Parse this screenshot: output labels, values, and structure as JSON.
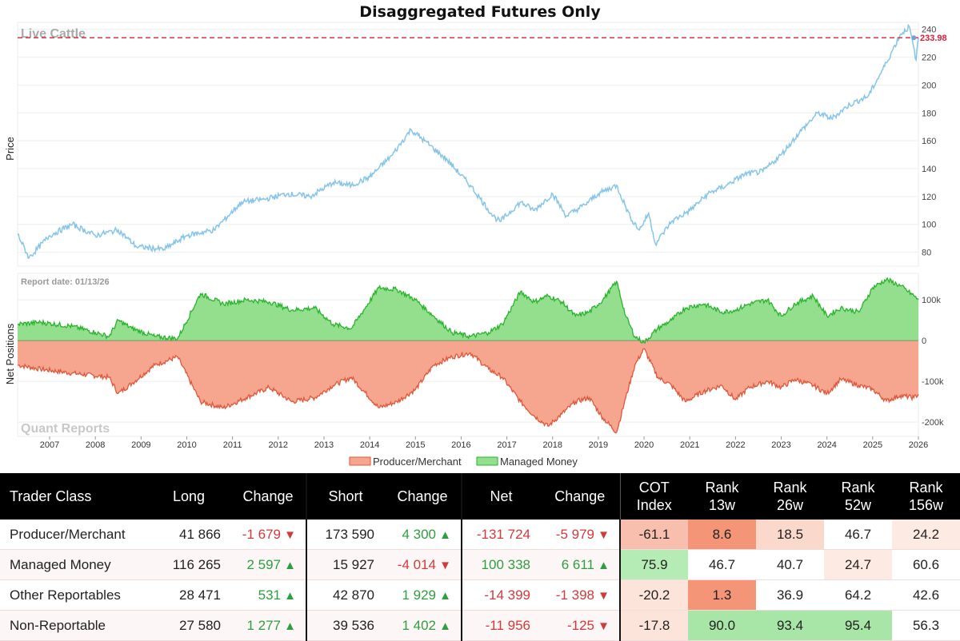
{
  "title": "Disaggregated Futures Only",
  "colors": {
    "price_line": "#86c5ea",
    "producer": "#f6a58f",
    "producer_line": "#e0573a",
    "managed": "#93df8e",
    "managed_line": "#27b52a",
    "ref_line": "#d8203a"
  },
  "chart_data": [
    {
      "type": "line",
      "name": "price",
      "watermark": "Live Cattle",
      "ylabel": "Price",
      "ylim": [
        70,
        245
      ],
      "yticks": [
        "80",
        "100",
        "120",
        "140",
        "160",
        "180",
        "200",
        "220",
        "240"
      ],
      "current_price": "233.98",
      "x_start": 2006.3,
      "x_end": 2026.0,
      "series": [
        {
          "name": "Live Cattle",
          "anchors": [
            [
              2006.3,
              93
            ],
            [
              2006.55,
              76
            ],
            [
              2007.0,
              92
            ],
            [
              2007.5,
              100
            ],
            [
              2008.0,
              92
            ],
            [
              2008.5,
              96
            ],
            [
              2008.9,
              84
            ],
            [
              2009.5,
              82
            ],
            [
              2010.0,
              92
            ],
            [
              2010.6,
              96
            ],
            [
              2011.2,
              116
            ],
            [
              2011.7,
              118
            ],
            [
              2012.2,
              122
            ],
            [
              2012.7,
              120
            ],
            [
              2013.2,
              130
            ],
            [
              2013.6,
              128
            ],
            [
              2014.0,
              134
            ],
            [
              2014.5,
              150
            ],
            [
              2014.9,
              168
            ],
            [
              2015.2,
              160
            ],
            [
              2015.7,
              146
            ],
            [
              2016.2,
              128
            ],
            [
              2016.7,
              106
            ],
            [
              2016.85,
              102
            ],
            [
              2017.3,
              116
            ],
            [
              2017.6,
              110
            ],
            [
              2018.0,
              122
            ],
            [
              2018.3,
              106
            ],
            [
              2018.7,
              114
            ],
            [
              2019.0,
              122
            ],
            [
              2019.4,
              128
            ],
            [
              2019.7,
              105
            ],
            [
              2019.9,
              96
            ],
            [
              2020.1,
              108
            ],
            [
              2020.25,
              86
            ],
            [
              2020.6,
              102
            ],
            [
              2021.0,
              110
            ],
            [
              2021.4,
              122
            ],
            [
              2021.8,
              128
            ],
            [
              2022.2,
              136
            ],
            [
              2022.6,
              138
            ],
            [
              2023.0,
              150
            ],
            [
              2023.4,
              166
            ],
            [
              2023.8,
              180
            ],
            [
              2024.1,
              176
            ],
            [
              2024.5,
              186
            ],
            [
              2024.9,
              192
            ],
            [
              2025.3,
              216
            ],
            [
              2025.6,
              236
            ],
            [
              2025.8,
              242
            ],
            [
              2025.95,
              218
            ],
            [
              2026.0,
              233.98
            ]
          ]
        }
      ]
    },
    {
      "type": "area",
      "name": "net-positions",
      "report_date_label": "Report date: 01/13/26",
      "watermark": "Quant Reports",
      "ylabel": "Net Positions",
      "ylim": [
        -235000,
        165000
      ],
      "yticks": [
        "100k",
        "0",
        "-100k",
        "-200k"
      ],
      "xticks": [
        "2007",
        "2008",
        "2009",
        "2010",
        "2011",
        "2012",
        "2013",
        "2014",
        "2015",
        "2016",
        "2017",
        "2018",
        "2019",
        "2020",
        "2021",
        "2022",
        "2023",
        "2024",
        "2025",
        "2026"
      ],
      "series": [
        {
          "name": "Producer/Merchant",
          "anchors": [
            [
              2006.3,
              -60000
            ],
            [
              2006.8,
              -70000
            ],
            [
              2007.5,
              -80000
            ],
            [
              2008.3,
              -90000
            ],
            [
              2008.5,
              -130000
            ],
            [
              2008.8,
              -105000
            ],
            [
              2009.3,
              -60000
            ],
            [
              2009.8,
              -40000
            ],
            [
              2010.3,
              -150000
            ],
            [
              2010.8,
              -165000
            ],
            [
              2011.3,
              -140000
            ],
            [
              2011.8,
              -115000
            ],
            [
              2012.3,
              -150000
            ],
            [
              2012.8,
              -140000
            ],
            [
              2013.2,
              -110000
            ],
            [
              2013.6,
              -90000
            ],
            [
              2014.2,
              -165000
            ],
            [
              2014.6,
              -150000
            ],
            [
              2015.0,
              -120000
            ],
            [
              2015.4,
              -60000
            ],
            [
              2015.8,
              -40000
            ],
            [
              2016.2,
              -30000
            ],
            [
              2016.6,
              -70000
            ],
            [
              2016.9,
              -90000
            ],
            [
              2017.3,
              -150000
            ],
            [
              2017.6,
              -185000
            ],
            [
              2017.9,
              -210000
            ],
            [
              2018.2,
              -180000
            ],
            [
              2018.5,
              -150000
            ],
            [
              2018.8,
              -140000
            ],
            [
              2019.1,
              -190000
            ],
            [
              2019.4,
              -225000
            ],
            [
              2019.6,
              -140000
            ],
            [
              2019.8,
              -60000
            ],
            [
              2020.0,
              -20000
            ],
            [
              2020.3,
              -90000
            ],
            [
              2020.6,
              -110000
            ],
            [
              2020.9,
              -150000
            ],
            [
              2021.3,
              -125000
            ],
            [
              2021.7,
              -110000
            ],
            [
              2022.0,
              -145000
            ],
            [
              2022.3,
              -115000
            ],
            [
              2022.7,
              -100000
            ],
            [
              2023.0,
              -115000
            ],
            [
              2023.3,
              -95000
            ],
            [
              2023.7,
              -110000
            ],
            [
              2024.0,
              -130000
            ],
            [
              2024.3,
              -95000
            ],
            [
              2024.7,
              -110000
            ],
            [
              2025.0,
              -120000
            ],
            [
              2025.3,
              -148000
            ],
            [
              2025.6,
              -135000
            ],
            [
              2025.9,
              -140000
            ],
            [
              2026.0,
              -131724
            ]
          ]
        },
        {
          "name": "Managed Money",
          "anchors": [
            [
              2006.3,
              40000
            ],
            [
              2006.8,
              45000
            ],
            [
              2007.5,
              35000
            ],
            [
              2008.0,
              20000
            ],
            [
              2008.3,
              10000
            ],
            [
              2008.5,
              50000
            ],
            [
              2008.8,
              30000
            ],
            [
              2009.3,
              10000
            ],
            [
              2009.8,
              5000
            ],
            [
              2010.3,
              115000
            ],
            [
              2010.8,
              90000
            ],
            [
              2011.3,
              100000
            ],
            [
              2011.8,
              95000
            ],
            [
              2012.3,
              75000
            ],
            [
              2012.8,
              80000
            ],
            [
              2013.2,
              40000
            ],
            [
              2013.6,
              30000
            ],
            [
              2014.2,
              130000
            ],
            [
              2014.6,
              125000
            ],
            [
              2015.0,
              100000
            ],
            [
              2015.4,
              60000
            ],
            [
              2015.8,
              20000
            ],
            [
              2016.2,
              10000
            ],
            [
              2016.6,
              20000
            ],
            [
              2016.9,
              40000
            ],
            [
              2017.3,
              120000
            ],
            [
              2017.6,
              95000
            ],
            [
              2017.9,
              110000
            ],
            [
              2018.2,
              95000
            ],
            [
              2018.5,
              60000
            ],
            [
              2018.8,
              70000
            ],
            [
              2019.1,
              100000
            ],
            [
              2019.4,
              145000
            ],
            [
              2019.6,
              60000
            ],
            [
              2019.8,
              10000
            ],
            [
              2020.0,
              -5000
            ],
            [
              2020.3,
              30000
            ],
            [
              2020.6,
              50000
            ],
            [
              2020.9,
              80000
            ],
            [
              2021.3,
              90000
            ],
            [
              2021.7,
              70000
            ],
            [
              2022.0,
              75000
            ],
            [
              2022.3,
              90000
            ],
            [
              2022.7,
              100000
            ],
            [
              2023.0,
              60000
            ],
            [
              2023.3,
              90000
            ],
            [
              2023.7,
              110000
            ],
            [
              2024.0,
              60000
            ],
            [
              2024.3,
              80000
            ],
            [
              2024.7,
              70000
            ],
            [
              2025.0,
              130000
            ],
            [
              2025.3,
              150000
            ],
            [
              2025.6,
              135000
            ],
            [
              2025.9,
              110000
            ],
            [
              2026.0,
              100338
            ]
          ]
        }
      ]
    }
  ],
  "legend": {
    "producer": "Producer/Merchant",
    "managed": "Managed Money"
  },
  "table": {
    "headers": {
      "trader_class": "Trader Class",
      "long": "Long",
      "change1": "Change",
      "short": "Short",
      "change2": "Change",
      "net": "Net",
      "change3": "Change",
      "cot1": "COT",
      "cot2": "Index",
      "r13a": "Rank",
      "r13b": "13w",
      "r26a": "Rank",
      "r26b": "26w",
      "r52a": "Rank",
      "r52b": "52w",
      "r156a": "Rank",
      "r156b": "156w"
    },
    "rows": [
      {
        "name": "Producer/Merchant",
        "long": "41 866",
        "long_change": "-1 679",
        "long_dir": "down",
        "short": "173 590",
        "short_change": "4 300",
        "short_dir": "up",
        "net": "-131 724",
        "net_change": "-5 979",
        "net_dir": "down",
        "cot_index": "-61.1",
        "rank_13w": "8.6",
        "rank_26w": "18.5",
        "rank_52w": "46.7",
        "rank_156w": "24.2"
      },
      {
        "name": "Managed Money",
        "long": "116 265",
        "long_change": "2 597",
        "long_dir": "up",
        "short": "15 927",
        "short_change": "-4 014",
        "short_dir": "down",
        "net": "100 338",
        "net_change": "6 611",
        "net_dir": "up",
        "cot_index": "75.9",
        "rank_13w": "46.7",
        "rank_26w": "40.7",
        "rank_52w": "24.7",
        "rank_156w": "60.6"
      },
      {
        "name": "Other Reportables",
        "long": "28 471",
        "long_change": "531",
        "long_dir": "up",
        "short": "42 870",
        "short_change": "1 929",
        "short_dir": "up",
        "net": "-14 399",
        "net_change": "-1 398",
        "net_dir": "down",
        "cot_index": "-20.2",
        "rank_13w": "1.3",
        "rank_26w": "36.9",
        "rank_52w": "64.2",
        "rank_156w": "42.6"
      },
      {
        "name": "Non-Reportable",
        "long": "27 580",
        "long_change": "1 277",
        "long_dir": "up",
        "short": "39 536",
        "short_change": "1 402",
        "short_dir": "up",
        "net": "-11 956",
        "net_change": "-125",
        "net_dir": "down",
        "cot_index": "-17.8",
        "rank_13w": "90.0",
        "rank_26w": "93.4",
        "rank_52w": "95.4",
        "rank_156w": "56.3"
      }
    ]
  }
}
